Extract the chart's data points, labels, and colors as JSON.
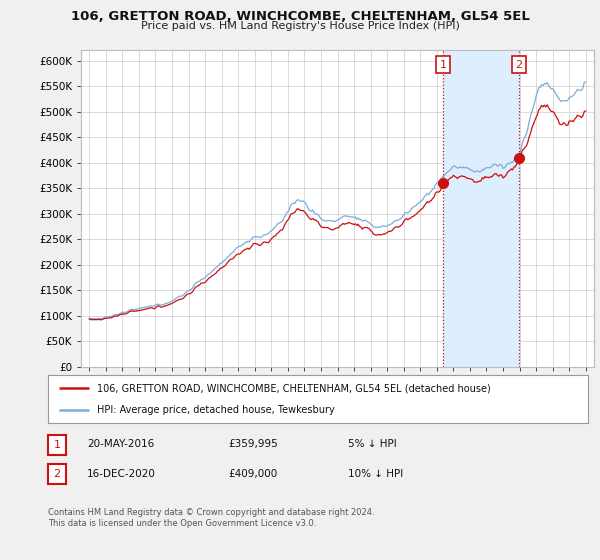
{
  "title": "106, GRETTON ROAD, WINCHCOMBE, CHELTENHAM, GL54 5EL",
  "subtitle": "Price paid vs. HM Land Registry's House Price Index (HPI)",
  "ylim": [
    0,
    620000
  ],
  "yticks": [
    0,
    50000,
    100000,
    150000,
    200000,
    250000,
    300000,
    350000,
    400000,
    450000,
    500000,
    550000,
    600000
  ],
  "ytick_labels": [
    "£0",
    "£50K",
    "£100K",
    "£150K",
    "£200K",
    "£250K",
    "£300K",
    "£350K",
    "£400K",
    "£450K",
    "£500K",
    "£550K",
    "£600K"
  ],
  "background_color": "#f0f0f0",
  "plot_bg_color": "#ffffff",
  "grid_color": "#cccccc",
  "hpi_color": "#7aaddb",
  "price_color": "#cc1111",
  "marker1_date": 2016.38,
  "marker1_price": 359995,
  "marker2_date": 2020.96,
  "marker2_price": 409000,
  "legend_line1": "106, GRETTON ROAD, WINCHCOMBE, CHELTENHAM, GL54 5EL (detached house)",
  "legend_line2": "HPI: Average price, detached house, Tewkesbury",
  "table_row1": [
    "1",
    "20-MAY-2016",
    "£359,995",
    "5% ↓ HPI"
  ],
  "table_row2": [
    "2",
    "16-DEC-2020",
    "£409,000",
    "10% ↓ HPI"
  ],
  "footnote": "Contains HM Land Registry data © Crown copyright and database right 2024.\nThis data is licensed under the Open Government Licence v3.0.",
  "xlim_start": 1994.5,
  "xlim_end": 2025.5,
  "shade_color": "#ddeeff"
}
